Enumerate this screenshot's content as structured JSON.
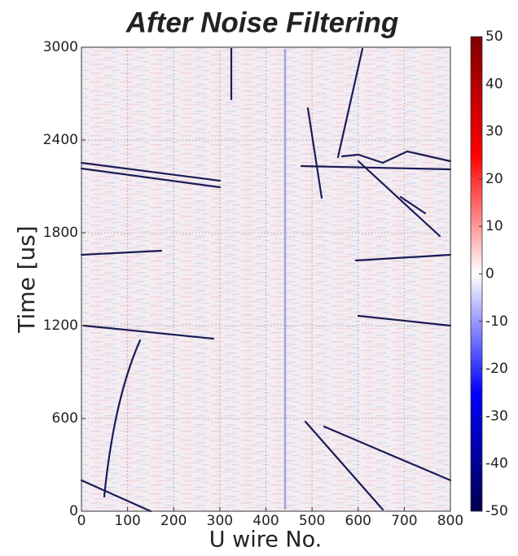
{
  "chart_data": {
    "type": "heatmap",
    "title": "After Noise Filtering",
    "xlabel": "U wire No.",
    "ylabel": "Time [us]",
    "xlim": [
      0,
      800
    ],
    "xticks": [
      0,
      100,
      200,
      300,
      400,
      500,
      600,
      700,
      800
    ],
    "ylim": [
      0,
      3000
    ],
    "yticks": [
      0,
      600,
      1200,
      1800,
      2400,
      3000
    ],
    "grid": true,
    "colormap": "seismic",
    "colorbar": {
      "lim": [
        -50,
        50
      ],
      "ticks": [
        -50,
        -40,
        -30,
        -20,
        -10,
        0,
        10,
        20,
        30,
        40,
        50
      ]
    }
  }
}
